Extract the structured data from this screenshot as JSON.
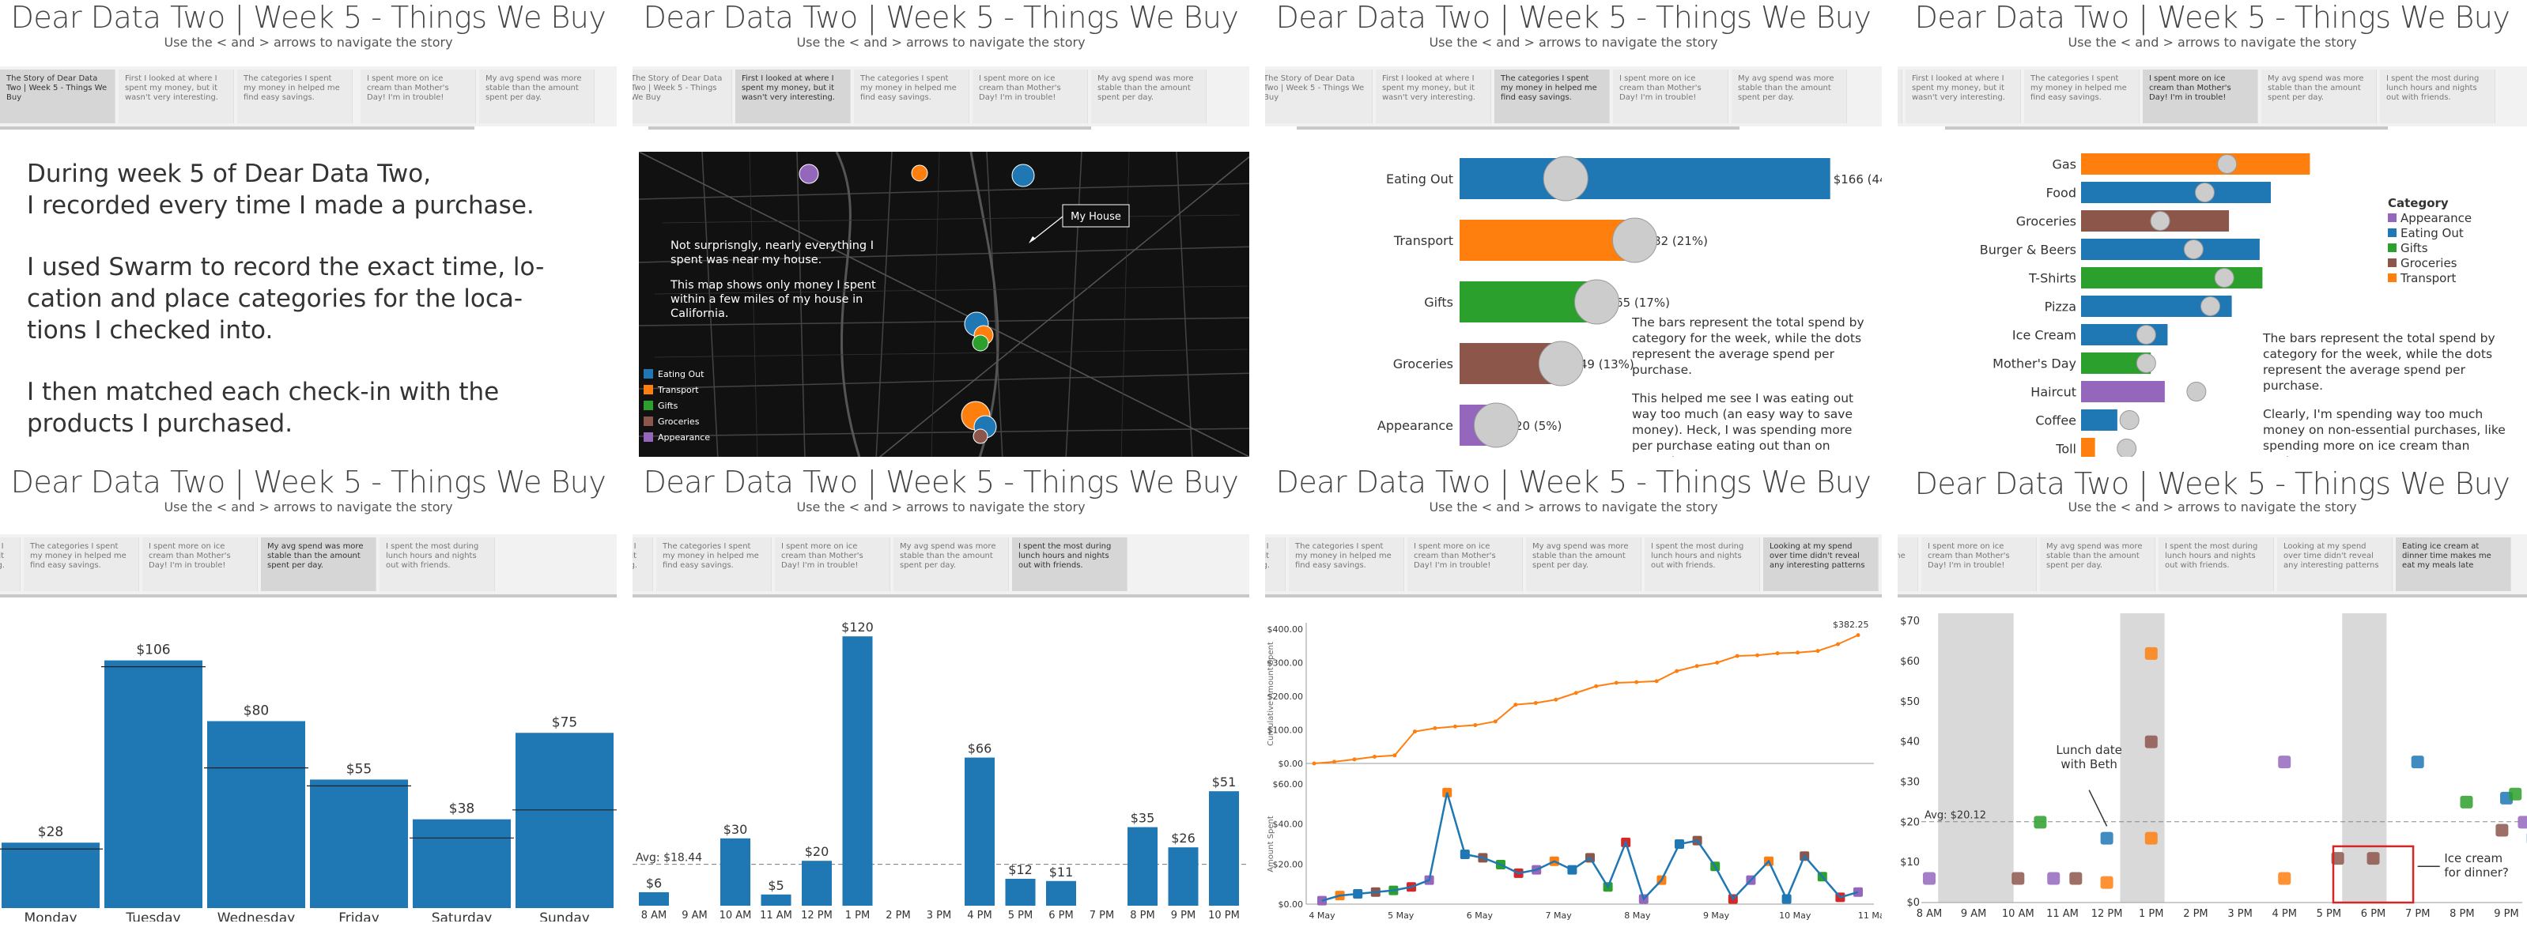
{
  "title": "Dear Data Two | Week 5 - Things We Buy",
  "subtitle": "Use the < and > arrows to navigate the story",
  "tabs": [
    "The Story of Dear Data Two | Week 5 - Things We Buy",
    "First I looked at where I spent my money, but it wasn't very interesting.",
    "The categories I spent my money in helped me find easy savings.",
    "I spent more on ice cream than Mother's Day! I'm in trouble!",
    "My avg spend was more stable than the amount spent per day.",
    "I spent the most during lunch hours and nights out with friends.",
    "Looking at my spend over time didn't reveal any interesting patterns",
    "Eating ice cream at dinner time makes me eat my meals late"
  ],
  "tab_fragments": {
    "a": "Th",
    "b": "spe",
    "c": "Two",
    "d": "Fir",
    "e": "spe",
    "f": "wa",
    "g": "First I",
    "h": "spent",
    "i": "wasn't",
    "j": "The c",
    "k": "my m",
    "l": "find e",
    "m": "first I",
    "n": "spent",
    "o": "Two",
    "p": "Fir",
    "q": "spe",
    "r": "wa",
    "s": "I",
    "t": "first",
    "u": "spent",
    "v": "id of"
  },
  "intro": {
    "p1": "During week 5 of Dear Data Two,\nI recorded every time I made a purchase.",
    "p2": "I used Swarm to record the exact time, lo-\ncation and place categories for the loca-\ntions I checked into.",
    "p3": "I then matched each check-in with the\nproducts I purchased."
  },
  "map": {
    "house_label": "My House",
    "text1": "Not surprisngly, nearly everything I spent was near my house.",
    "text2": "This map shows only money I spent within a few miles of my house in California.",
    "legend": [
      "Eating Out",
      "Transport",
      "Gifts",
      "Groceries",
      "Appearance"
    ]
  },
  "colors": {
    "Eating Out": "#1f77b4",
    "Transport": "#ff7f0e",
    "Gifts": "#2ca02c",
    "Groceries": "#8c564b",
    "Appearance": "#9467bd"
  },
  "p3": {
    "caption1": "The bars represent the total spend by category for the week, while the dots represent the average spend per purchase.",
    "caption2": "This helped me see I was eating out way too much (an easy way to save money). Heck, I was spending more per purchase eating out than on groceries!"
  },
  "p4": {
    "legend_title": "Category",
    "legend": [
      "Appearance",
      "Eating Out",
      "Gifts",
      "Groceries",
      "Transport"
    ],
    "caption1": "The bars represent the total spend by category for the week, while the dots represent the average spend per purchase.",
    "caption2": "Clearly, I'm spending way too much money on non-essential purchases, like spending more on ice cream than Mother's Day."
  },
  "p8": {
    "avg_label": "Avg: $20.12",
    "note1": "Lunch date\nwith Beth",
    "note2": "Ice cream\nfor dinner?"
  },
  "chart_data": [
    {
      "type": "bar",
      "orientation": "horizontal",
      "categories": [
        "Eating Out",
        "Transport",
        "Gifts",
        "Groceries",
        "Appearance"
      ],
      "values": [
        166,
        82,
        65,
        49,
        20
      ],
      "data_labels": [
        "$166 (44%)",
        "$82 (21%)",
        "$65 (17%)",
        "$49 (13%)",
        "$20 (5%)"
      ],
      "avg": [
        11,
        21,
        26,
        12,
        12
      ],
      "colors": [
        "#1f77b4",
        "#ff7f0e",
        "#2ca02c",
        "#8c564b",
        "#9467bd"
      ],
      "xlim": [
        0,
        170
      ]
    },
    {
      "type": "bar",
      "orientation": "horizontal",
      "categories": [
        "Gas",
        "Food",
        "Groceries",
        "Burger & Beers",
        "T-Shirts",
        "Pizza",
        "Ice Cream",
        "Mother's Day",
        "Haircut",
        "Coffee",
        "Toll"
      ],
      "values": [
        82,
        68,
        53,
        64,
        65,
        54,
        31,
        25,
        30,
        13,
        5
      ],
      "avg": [
        41,
        33,
        17,
        29,
        40,
        35,
        12,
        12,
        30,
        6,
        5
      ],
      "colors": [
        "#ff7f0e",
        "#1f77b4",
        "#8c564b",
        "#1f77b4",
        "#2ca02c",
        "#1f77b4",
        "#1f77b4",
        "#2ca02c",
        "#9467bd",
        "#1f77b4",
        "#ff7f0e"
      ],
      "xlim": [
        0,
        85
      ]
    },
    {
      "type": "bar",
      "categories": [
        "Monday",
        "Tuesday",
        "Wednesday",
        "Friday",
        "Saturday",
        "Sunday"
      ],
      "values": [
        28,
        106,
        80,
        55,
        38,
        75
      ],
      "data_labels": [
        "$28",
        "$106",
        "$80",
        "$55",
        "$38",
        "$75"
      ],
      "avg": [
        12,
        35,
        20,
        23,
        10,
        14
      ],
      "ylim": [
        0,
        115
      ]
    },
    {
      "type": "bar",
      "categories": [
        "8 AM",
        "9 AM",
        "10 AM",
        "11 AM",
        "12 PM",
        "1 PM",
        "2 PM",
        "3 PM",
        "4 PM",
        "5 PM",
        "6 PM",
        "7 PM",
        "8 PM",
        "9 PM",
        "10 PM"
      ],
      "values": [
        6,
        0,
        30,
        5,
        20,
        120,
        0,
        0,
        66,
        12,
        11,
        0,
        35,
        26,
        51
      ],
      "data_labels": [
        "$6",
        "",
        "$30",
        "$5",
        "$20",
        "$120",
        "",
        "",
        "$66",
        "$12",
        "$11",
        "",
        "$35",
        "$26",
        "$51"
      ],
      "avg_label": "Avg: $18.44",
      "avg": 18.44,
      "ylim": [
        0,
        125
      ]
    },
    {
      "type": "line",
      "x_ticks": [
        "4 May",
        "5 May",
        "6 May",
        "7 May",
        "8 May",
        "9 May",
        "10 May",
        "11 May"
      ],
      "top": {
        "ylabel": "Cumulative Amount Spent",
        "y_ticks": [
          "$0.00",
          "$100.00",
          "$200.00",
          "$300.00",
          "$400.00"
        ],
        "end_label": "$382.25",
        "values": [
          0,
          5,
          12,
          20,
          24,
          95,
          105,
          110,
          114,
          125,
          175,
          180,
          190,
          210,
          230,
          240,
          242,
          245,
          275,
          290,
          300,
          320,
          322,
          328,
          330,
          335,
          355,
          382
        ],
        "ylim": [
          0,
          400
        ]
      },
      "bottom": {
        "ylabel": "Amount Spent",
        "y_ticks": [
          "$0.00",
          "$20.00",
          "$40.00",
          "$60.00"
        ],
        "values": [
          2,
          5,
          6,
          7,
          8,
          10,
          14,
          65,
          29,
          27,
          23,
          18,
          20,
          25,
          20,
          27,
          10,
          36,
          3,
          14,
          35,
          37,
          22,
          3,
          14,
          25,
          3,
          28,
          16,
          4,
          7
        ],
        "ylim": [
          0,
          70
        ]
      }
    },
    {
      "type": "scatter",
      "x_ticks": [
        "8 AM",
        "9 AM",
        "10 AM",
        "11 AM",
        "12 PM",
        "1 PM",
        "2 PM",
        "3 PM",
        "4 PM",
        "5 PM",
        "6 PM",
        "7 PM",
        "8 PM",
        "9 PM"
      ],
      "y_ticks": [
        "$0",
        "$10",
        "$20",
        "$30",
        "$40",
        "$50",
        "$60",
        "$70"
      ],
      "avg": 20.12,
      "points": [
        [
          8,
          6,
          "Appearance"
        ],
        [
          10,
          6,
          "Groceries"
        ],
        [
          10.5,
          20,
          "Gifts"
        ],
        [
          10.8,
          6,
          "Appearance"
        ],
        [
          11.3,
          6,
          "Groceries"
        ],
        [
          12,
          5,
          "Transport"
        ],
        [
          12,
          16,
          "Eating Out"
        ],
        [
          13,
          16,
          "Transport"
        ],
        [
          13,
          40,
          "Groceries"
        ],
        [
          13,
          62,
          "Transport"
        ],
        [
          16,
          6,
          "Transport"
        ],
        [
          16,
          35,
          "Appearance"
        ],
        [
          17.2,
          11,
          "Groceries"
        ],
        [
          18,
          11,
          "Groceries"
        ],
        [
          19,
          35,
          "Eating Out"
        ],
        [
          20.1,
          25,
          "Gifts"
        ],
        [
          20.9,
          18,
          "Groceries"
        ],
        [
          21,
          26,
          "Eating Out"
        ],
        [
          21.2,
          27,
          "Gifts"
        ],
        [
          21.4,
          20,
          "Appearance"
        ],
        [
          21.6,
          16,
          "Eating Out"
        ]
      ],
      "ylim": [
        0,
        72
      ]
    }
  ]
}
